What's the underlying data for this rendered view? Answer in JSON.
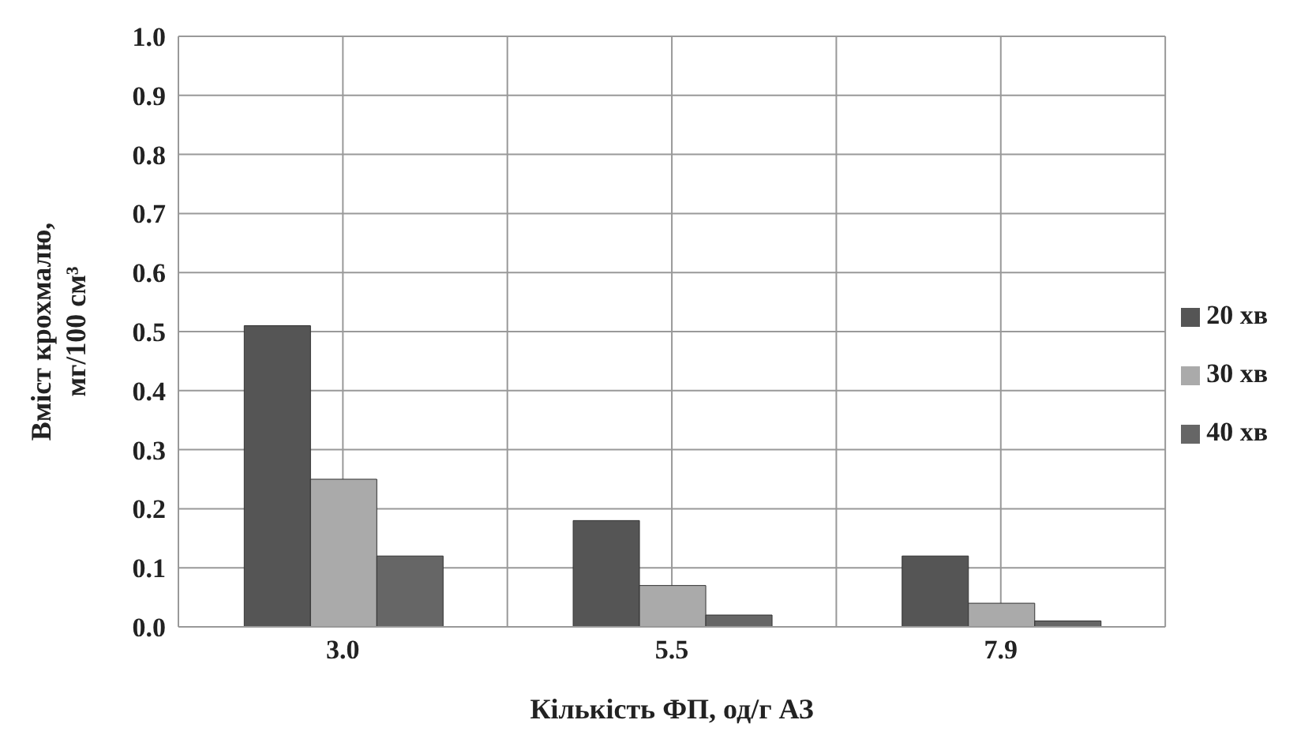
{
  "chart_data": {
    "type": "bar",
    "xlabel": "Кількість ФП, од/г АЗ",
    "ylabel": "Вміст крохмалю, мг/100 см³",
    "categories": [
      "3.0",
      "5.5",
      "7.9"
    ],
    "series": [
      {
        "name": "20 хв",
        "color": "#555555",
        "values": [
          0.51,
          0.18,
          0.12
        ]
      },
      {
        "name": "30 хв",
        "color": "#aaaaaa",
        "values": [
          0.25,
          0.07,
          0.04
        ]
      },
      {
        "name": "40 хв",
        "color": "#666666",
        "values": [
          0.12,
          0.02,
          0.01
        ]
      }
    ],
    "ylim": [
      0,
      1
    ],
    "yticks": [
      {
        "value": 0,
        "label": "0.0"
      },
      0.1,
      0.2,
      0.3,
      0.4,
      0.5,
      0.6,
      0.7,
      0.8,
      0.9,
      {
        "value": 1,
        "label": "1.0"
      }
    ],
    "grid": true,
    "legend": "right"
  }
}
